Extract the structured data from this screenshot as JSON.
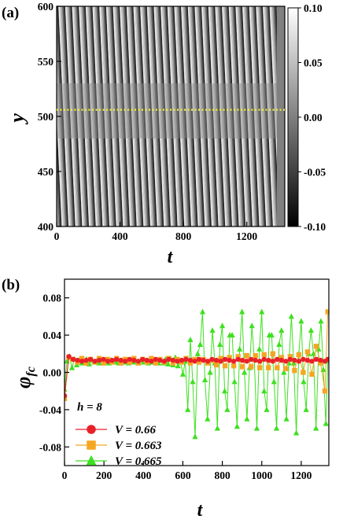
{
  "chart_data": [
    {
      "type": "heatmap",
      "panel_label": "(a)",
      "xlabel": "t",
      "ylabel": "y",
      "xlim": [
        0,
        1440
      ],
      "ylim": [
        400,
        600
      ],
      "xticks": [
        "0",
        "400",
        "800",
        "1200"
      ],
      "xtick_values": [
        0,
        400,
        800,
        1200
      ],
      "yticks": [
        "400",
        "450",
        "500",
        "550",
        "600"
      ],
      "ytick_values": [
        400,
        450,
        500,
        550,
        600
      ],
      "colorbar": {
        "range": [
          -0.1,
          0.1
        ],
        "ticks": [
          "0.10",
          "0.05",
          "0.00",
          "-0.05",
          "-0.10"
        ],
        "tick_values": [
          0.1,
          0.05,
          0.0,
          -0.05,
          -0.1
        ],
        "colormap": "gray"
      },
      "stripe_period_t": 43,
      "stripe_tilt_t_per_y": 0.32,
      "active_until_t": 1390,
      "central_band_y": [
        480,
        530
      ],
      "reference_line": {
        "y": 506,
        "color": "#f2f23a",
        "style": "dotted"
      }
    },
    {
      "type": "line",
      "panel_label": "(b)",
      "xlabel": "t",
      "ylabel": "φfc",
      "ylabel_main": "φ",
      "ylabel_sub": "fc",
      "xlim": [
        0,
        1340
      ],
      "ylim": [
        -0.1,
        0.1
      ],
      "xticks": [
        "0",
        "200",
        "400",
        "600",
        "800",
        "1000",
        "1200"
      ],
      "xtick_values": [
        0,
        200,
        400,
        600,
        800,
        1000,
        1200
      ],
      "yticks": [
        "0.08",
        "0.04",
        "0.00",
        "-0.04",
        "-0.08"
      ],
      "ytick_values": [
        0.08,
        0.04,
        0.0,
        -0.04,
        -0.08
      ],
      "legend_title": "h = 8",
      "legend_position": "bottom-left",
      "series": [
        {
          "name": "V = 0.66",
          "color": "#e8202a",
          "marker": "circle",
          "x": [
            0,
            22,
            44,
            66,
            88,
            110,
            132,
            154,
            176,
            198,
            220,
            242,
            264,
            286,
            308,
            330,
            352,
            374,
            396,
            418,
            440,
            462,
            484,
            506,
            528,
            550,
            572,
            594,
            616,
            638,
            660,
            682,
            704,
            726,
            748,
            770,
            792,
            814,
            836,
            858,
            880,
            902,
            924,
            946,
            968,
            990,
            1012,
            1034,
            1056,
            1078,
            1100,
            1122,
            1144,
            1166,
            1188,
            1210,
            1232,
            1254,
            1276,
            1298,
            1320,
            1335
          ],
          "y": [
            -0.025,
            0.017,
            0.014,
            0.013,
            0.012,
            0.013,
            0.014,
            0.012,
            0.013,
            0.014,
            0.012,
            0.013,
            0.014,
            0.013,
            0.012,
            0.014,
            0.013,
            0.012,
            0.014,
            0.013,
            0.012,
            0.014,
            0.013,
            0.012,
            0.014,
            0.013,
            0.012,
            0.013,
            0.014,
            0.013,
            0.012,
            0.014,
            0.013,
            0.012,
            0.014,
            0.013,
            0.012,
            0.014,
            0.013,
            0.012,
            0.014,
            0.013,
            0.012,
            0.014,
            0.013,
            0.012,
            0.014,
            0.013,
            0.012,
            0.014,
            0.013,
            0.012,
            0.014,
            0.013,
            0.012,
            0.014,
            0.013,
            0.012,
            0.014,
            0.013,
            0.012,
            0.014
          ]
        },
        {
          "name": "V = 0.663",
          "color": "#f5a623",
          "marker": "square",
          "x": [
            0,
            22,
            44,
            66,
            88,
            110,
            132,
            154,
            176,
            198,
            220,
            242,
            264,
            286,
            308,
            330,
            352,
            374,
            396,
            418,
            440,
            462,
            484,
            506,
            528,
            550,
            572,
            594,
            616,
            638,
            660,
            682,
            704,
            726,
            748,
            770,
            792,
            814,
            836,
            858,
            880,
            902,
            924,
            946,
            968,
            990,
            1012,
            1034,
            1056,
            1078,
            1100,
            1122,
            1144,
            1166,
            1188,
            1210,
            1232,
            1254,
            1276,
            1298,
            1320,
            1335
          ],
          "y": [
            -0.028,
            0.016,
            0.014,
            0.011,
            0.015,
            0.01,
            0.014,
            0.011,
            0.015,
            0.01,
            0.014,
            0.011,
            0.015,
            0.01,
            0.014,
            0.011,
            0.015,
            0.01,
            0.014,
            0.011,
            0.015,
            0.01,
            0.014,
            0.011,
            0.015,
            0.01,
            0.014,
            0.011,
            0.015,
            0.01,
            0.014,
            0.011,
            0.014,
            0.01,
            0.013,
            0.008,
            0.015,
            0.007,
            0.016,
            0.007,
            0.017,
            0.006,
            0.018,
            0.006,
            0.018,
            0.005,
            0.019,
            0.005,
            0.02,
            0.005,
            0.016,
            0.004,
            0.017,
            0.002,
            0.019,
            0.0,
            0.022,
            -0.002,
            0.028,
            0.01,
            -0.02,
            0.065
          ]
        },
        {
          "name": "V = 0.665",
          "color": "#3ee020",
          "marker": "triangle",
          "x": [
            0,
            12,
            25,
            38,
            50,
            62,
            75,
            88,
            100,
            112,
            125,
            138,
            150,
            162,
            175,
            188,
            200,
            212,
            225,
            238,
            250,
            262,
            275,
            288,
            300,
            312,
            325,
            338,
            350,
            362,
            375,
            388,
            400,
            412,
            425,
            438,
            450,
            462,
            475,
            488,
            500,
            512,
            525,
            538,
            550,
            562,
            575,
            588,
            600,
            612,
            625,
            638,
            650,
            662,
            675,
            688,
            700,
            712,
            725,
            738,
            750,
            762,
            775,
            788,
            800,
            812,
            825,
            838,
            850,
            862,
            875,
            888,
            900,
            912,
            925,
            938,
            950,
            962,
            975,
            988,
            1000,
            1012,
            1025,
            1038,
            1050,
            1062,
            1075,
            1088,
            1100,
            1112,
            1125,
            1138,
            1150,
            1162,
            1175,
            1188,
            1200,
            1212,
            1225,
            1238,
            1250,
            1262,
            1275,
            1288,
            1300,
            1312,
            1325,
            1335
          ],
          "y": [
            -0.018,
            0.012,
            0.017,
            0.005,
            0.014,
            0.008,
            0.013,
            0.01,
            0.011,
            0.014,
            0.009,
            0.013,
            0.011,
            0.012,
            0.01,
            0.013,
            0.011,
            0.012,
            0.01,
            0.013,
            0.011,
            0.012,
            0.01,
            0.013,
            0.011,
            0.012,
            0.01,
            0.013,
            0.011,
            0.012,
            0.01,
            0.013,
            0.011,
            0.012,
            0.01,
            0.013,
            0.011,
            0.012,
            0.01,
            0.013,
            0.01,
            0.014,
            0.009,
            0.015,
            0.008,
            0.016,
            0.007,
            0.012,
            -0.002,
            0.012,
            -0.04,
            0.035,
            -0.01,
            -0.069,
            0.02,
            0.03,
            0.065,
            -0.008,
            -0.05,
            0.0,
            0.045,
            0.01,
            -0.06,
            0.03,
            0.05,
            -0.02,
            -0.04,
            0.04,
            0.04,
            -0.01,
            -0.058,
            0.025,
            0.065,
            0.0,
            -0.05,
            0.005,
            0.05,
            0.015,
            -0.06,
            0.025,
            0.065,
            -0.02,
            -0.04,
            0.04,
            0.04,
            -0.01,
            -0.06,
            0.03,
            0.045,
            0.0,
            -0.05,
            0.01,
            0.06,
            0.01,
            -0.065,
            0.02,
            0.055,
            -0.01,
            -0.04,
            0.02,
            0.045,
            0.02,
            -0.06,
            0.025,
            0.055,
            0.003,
            -0.055,
            0.012
          ]
        }
      ]
    }
  ]
}
